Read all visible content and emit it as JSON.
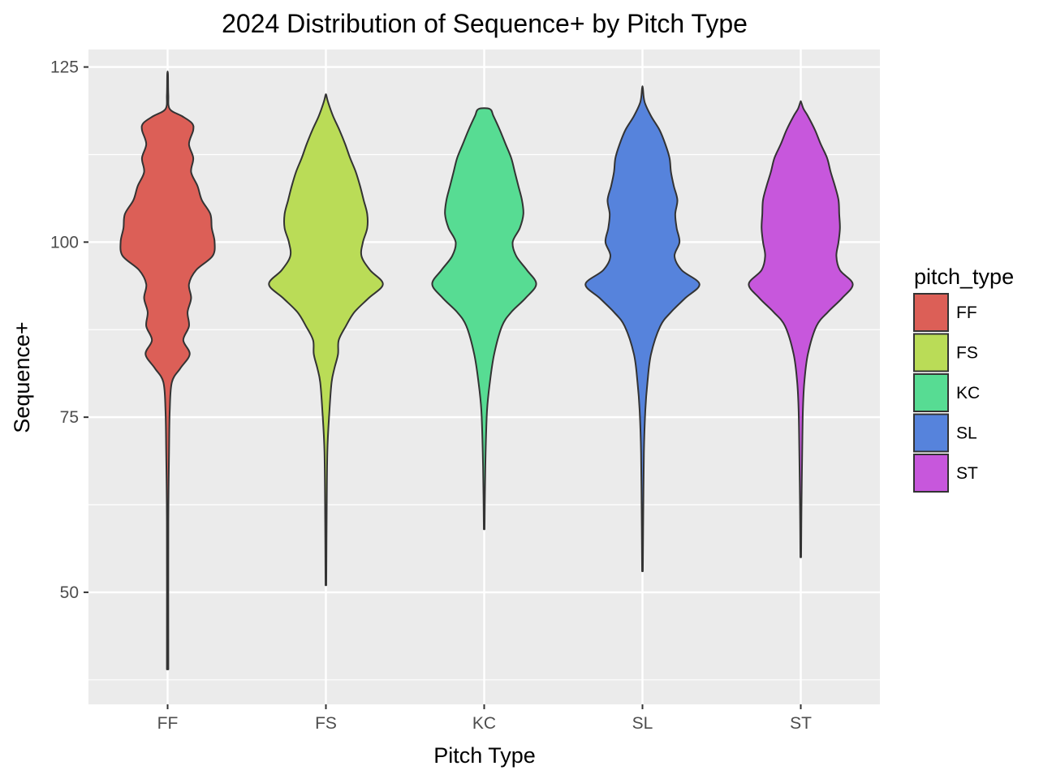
{
  "chart_data": {
    "type": "violin",
    "title": "2024 Distribution of Sequence+ by Pitch Type",
    "xlabel": "Pitch Type",
    "ylabel": "Sequence+",
    "categories": [
      "FF",
      "FS",
      "KC",
      "SL",
      "ST"
    ],
    "ylim": [
      34,
      127.5
    ],
    "yticks": [
      50,
      75,
      100,
      125
    ],
    "grid": true,
    "legend": {
      "title": "pitch_type",
      "position": "right",
      "entries": [
        "FF",
        "FS",
        "KC",
        "SL",
        "ST"
      ]
    },
    "colors": {
      "FF": "#dc5f57",
      "FS": "#badc57",
      "KC": "#57dc93",
      "SL": "#5683dc",
      "ST": "#c757dc",
      "panel": "#ebebeb",
      "outline": "#333333"
    },
    "series": [
      {
        "name": "FF",
        "min": 39,
        "max": 124,
        "density": [
          [
            39,
            0.01
          ],
          [
            60,
            0.01
          ],
          [
            70,
            0.02
          ],
          [
            76,
            0.03
          ],
          [
            80,
            0.06
          ],
          [
            82,
            0.18
          ],
          [
            84,
            0.31
          ],
          [
            86,
            0.22
          ],
          [
            88,
            0.3
          ],
          [
            90,
            0.28
          ],
          [
            92,
            0.33
          ],
          [
            94,
            0.3
          ],
          [
            96,
            0.4
          ],
          [
            98,
            0.63
          ],
          [
            100,
            0.66
          ],
          [
            102,
            0.62
          ],
          [
            104,
            0.6
          ],
          [
            106,
            0.48
          ],
          [
            108,
            0.42
          ],
          [
            110,
            0.33
          ],
          [
            112,
            0.36
          ],
          [
            114,
            0.3
          ],
          [
            116,
            0.36
          ],
          [
            117,
            0.34
          ],
          [
            118,
            0.2
          ],
          [
            119,
            0.03
          ],
          [
            121,
            0.01
          ],
          [
            124,
            0.005
          ]
        ]
      },
      {
        "name": "FS",
        "min": 51,
        "max": 121,
        "density": [
          [
            51,
            0.005
          ],
          [
            60,
            0.01
          ],
          [
            70,
            0.02
          ],
          [
            76,
            0.05
          ],
          [
            80,
            0.08
          ],
          [
            82,
            0.12
          ],
          [
            84,
            0.17
          ],
          [
            86,
            0.18
          ],
          [
            88,
            0.28
          ],
          [
            90,
            0.4
          ],
          [
            92,
            0.6
          ],
          [
            94,
            0.8
          ],
          [
            96,
            0.62
          ],
          [
            98,
            0.5
          ],
          [
            100,
            0.52
          ],
          [
            102,
            0.58
          ],
          [
            104,
            0.58
          ],
          [
            106,
            0.53
          ],
          [
            108,
            0.48
          ],
          [
            110,
            0.42
          ],
          [
            112,
            0.34
          ],
          [
            114,
            0.27
          ],
          [
            116,
            0.19
          ],
          [
            118,
            0.1
          ],
          [
            120,
            0.03
          ],
          [
            121,
            0.005
          ]
        ]
      },
      {
        "name": "KC",
        "min": 59,
        "max": 119,
        "density": [
          [
            59,
            0.005
          ],
          [
            64,
            0.01
          ],
          [
            70,
            0.02
          ],
          [
            76,
            0.04
          ],
          [
            80,
            0.08
          ],
          [
            84,
            0.14
          ],
          [
            88,
            0.25
          ],
          [
            90,
            0.38
          ],
          [
            92,
            0.58
          ],
          [
            94,
            0.73
          ],
          [
            96,
            0.6
          ],
          [
            98,
            0.45
          ],
          [
            100,
            0.4
          ],
          [
            102,
            0.5
          ],
          [
            104,
            0.55
          ],
          [
            106,
            0.53
          ],
          [
            108,
            0.48
          ],
          [
            110,
            0.43
          ],
          [
            112,
            0.38
          ],
          [
            114,
            0.3
          ],
          [
            116,
            0.22
          ],
          [
            118,
            0.13
          ],
          [
            119,
            0.08
          ]
        ]
      },
      {
        "name": "SL",
        "min": 53,
        "max": 122,
        "density": [
          [
            53,
            0.005
          ],
          [
            60,
            0.01
          ],
          [
            70,
            0.02
          ],
          [
            76,
            0.04
          ],
          [
            80,
            0.07
          ],
          [
            84,
            0.12
          ],
          [
            88,
            0.25
          ],
          [
            90,
            0.4
          ],
          [
            92,
            0.6
          ],
          [
            94,
            0.8
          ],
          [
            96,
            0.55
          ],
          [
            98,
            0.45
          ],
          [
            100,
            0.52
          ],
          [
            102,
            0.48
          ],
          [
            104,
            0.46
          ],
          [
            106,
            0.49
          ],
          [
            108,
            0.44
          ],
          [
            110,
            0.4
          ],
          [
            112,
            0.38
          ],
          [
            114,
            0.32
          ],
          [
            116,
            0.24
          ],
          [
            118,
            0.12
          ],
          [
            120,
            0.03
          ],
          [
            122,
            0.005
          ]
        ]
      },
      {
        "name": "ST",
        "min": 55,
        "max": 120,
        "density": [
          [
            55,
            0.005
          ],
          [
            62,
            0.01
          ],
          [
            70,
            0.02
          ],
          [
            76,
            0.03
          ],
          [
            80,
            0.05
          ],
          [
            84,
            0.1
          ],
          [
            88,
            0.22
          ],
          [
            90,
            0.38
          ],
          [
            92,
            0.58
          ],
          [
            94,
            0.73
          ],
          [
            96,
            0.55
          ],
          [
            98,
            0.5
          ],
          [
            100,
            0.53
          ],
          [
            102,
            0.55
          ],
          [
            104,
            0.54
          ],
          [
            106,
            0.53
          ],
          [
            108,
            0.48
          ],
          [
            110,
            0.42
          ],
          [
            112,
            0.37
          ],
          [
            114,
            0.28
          ],
          [
            116,
            0.2
          ],
          [
            118,
            0.1
          ],
          [
            119,
            0.04
          ],
          [
            120,
            0.005
          ]
        ]
      }
    ]
  }
}
